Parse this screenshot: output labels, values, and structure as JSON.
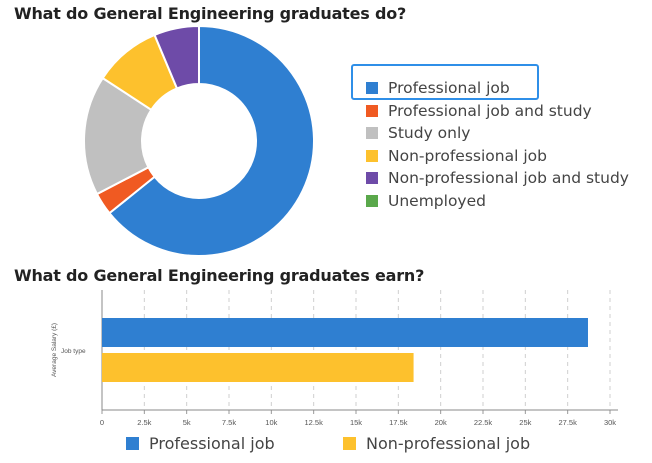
{
  "titles": {
    "donut": "What do General Engineering graduates do?",
    "bar": "What do General Engineering graduates earn?"
  },
  "colors": {
    "professional": "#2f7fd1",
    "professional_study": "#f05a22",
    "study_only": "#c0c0c0",
    "non_professional": "#fdc12d",
    "non_professional_study": "#6e4ba8",
    "unemployed": "#5aa84b",
    "highlight": "#2f8fe8"
  },
  "chart_data": [
    {
      "type": "pie",
      "title": "What do General Engineering graduates do?",
      "donut": true,
      "categories": [
        "Professional job",
        "Professional job and study",
        "Study only",
        "Non-professional job",
        "Non-professional job and study",
        "Unemployed"
      ],
      "values": [
        61,
        3,
        16,
        9,
        6,
        0
      ],
      "legend_position": "right",
      "highlighted_legend_item": "Professional job"
    },
    {
      "type": "bar",
      "orientation": "horizontal",
      "title": "What do General Engineering graduates earn?",
      "ylabel": "Average Salary (£)",
      "category_label": "Job type",
      "series": [
        {
          "name": "Professional job",
          "values": [
            28700
          ]
        },
        {
          "name": "Non-professional job",
          "values": [
            18400
          ]
        }
      ],
      "xlim": [
        0,
        30000
      ],
      "ticks": [
        "0",
        "2.5k",
        "5k",
        "7.5k",
        "10k",
        "12.5k",
        "15k",
        "17.5k",
        "20k",
        "22.5k",
        "25k",
        "27.5k",
        "30k"
      ],
      "grid": true,
      "legend_position": "bottom"
    }
  ],
  "legend1": [
    {
      "label": "Professional job",
      "color_key": "professional"
    },
    {
      "label": "Professional job and study",
      "color_key": "professional_study"
    },
    {
      "label": "Study only",
      "color_key": "study_only"
    },
    {
      "label": "Non-professional job",
      "color_key": "non_professional"
    },
    {
      "label": "Non-professional job and study",
      "color_key": "non_professional_study"
    },
    {
      "label": "Unemployed",
      "color_key": "unemployed"
    }
  ],
  "legend2": [
    {
      "label": "Professional job",
      "color_key": "professional"
    },
    {
      "label": "Non-professional job",
      "color_key": "non_professional"
    }
  ]
}
